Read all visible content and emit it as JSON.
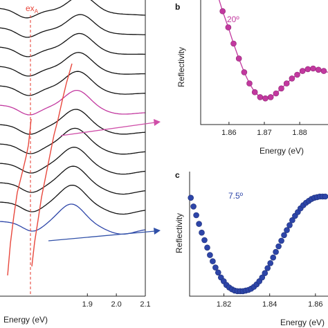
{
  "colors": {
    "black_curve": "#111111",
    "magenta": "#c2389f",
    "blue": "#2d45a8",
    "red": "#e8473c",
    "arrow_magenta": "#cf4ea8",
    "arrow_blue": "#3050a8"
  },
  "chart_data": [
    {
      "panel": "a",
      "type": "line",
      "xlabel": "Energy (eV)",
      "x_ticks": [
        "1.9",
        "2.0",
        "2.1"
      ],
      "xlim": [
        1.73,
        2.1
      ],
      "annotation": {
        "label": "ex",
        "subscript": "A",
        "x": 1.875
      },
      "series": [
        {
          "color": "black",
          "curve_index": 1
        },
        {
          "color": "black",
          "curve_index": 2
        },
        {
          "color": "black",
          "curve_index": 3
        },
        {
          "color": "black",
          "curve_index": 4
        },
        {
          "color": "black",
          "curve_index": 5
        },
        {
          "color": "magenta",
          "curve_index": 6
        },
        {
          "color": "black",
          "curve_index": 7
        },
        {
          "color": "black",
          "curve_index": 8
        },
        {
          "color": "black",
          "curve_index": 9
        },
        {
          "color": "black",
          "curve_index": 10
        },
        {
          "color": "black",
          "curve_index": 11
        },
        {
          "color": "blue",
          "curve_index": 12
        }
      ]
    },
    {
      "panel": "b",
      "type": "scatter",
      "title": "b",
      "angle_label": "20º",
      "xlabel": "Energy (eV)",
      "ylabel": "Reflectivity",
      "x_ticks": [
        "1.86",
        "1.87",
        "1.88"
      ],
      "xlim": [
        1.852,
        1.888
      ],
      "ylim": [
        0,
        1
      ],
      "points": [
        [
          1.8582,
          0.91
        ],
        [
          1.8598,
          0.78
        ],
        [
          1.8613,
          0.65
        ],
        [
          1.8628,
          0.53
        ],
        [
          1.8643,
          0.42
        ],
        [
          1.8658,
          0.33
        ],
        [
          1.8673,
          0.26
        ],
        [
          1.8688,
          0.22
        ],
        [
          1.8703,
          0.21
        ],
        [
          1.8718,
          0.22
        ],
        [
          1.8733,
          0.25
        ],
        [
          1.8748,
          0.29
        ],
        [
          1.8763,
          0.33
        ],
        [
          1.8778,
          0.37
        ],
        [
          1.8793,
          0.4
        ],
        [
          1.8808,
          0.43
        ],
        [
          1.8823,
          0.445
        ],
        [
          1.8838,
          0.45
        ],
        [
          1.8853,
          0.44
        ],
        [
          1.8868,
          0.43
        ]
      ],
      "fit_x": [
        1.857,
        1.8582,
        1.8598,
        1.8613,
        1.8628,
        1.8643,
        1.8658,
        1.8673,
        1.8688,
        1.8703,
        1.8718,
        1.8733,
        1.8748,
        1.8763,
        1.8778,
        1.8793,
        1.8808,
        1.8823,
        1.8838,
        1.8853,
        1.8868,
        1.888
      ],
      "fit_y": [
        1.02,
        0.91,
        0.78,
        0.65,
        0.53,
        0.42,
        0.33,
        0.26,
        0.22,
        0.21,
        0.22,
        0.25,
        0.29,
        0.33,
        0.37,
        0.4,
        0.43,
        0.445,
        0.45,
        0.44,
        0.43,
        0.42
      ]
    },
    {
      "panel": "c",
      "type": "scatter",
      "title": "c",
      "angle_label": "7.5º",
      "xlabel": "Energy (eV)",
      "ylabel": "Reflectivity",
      "x_ticks": [
        "1.82",
        "1.84",
        "1.86"
      ],
      "xlim": [
        1.805,
        1.8655
      ],
      "ylim": [
        0,
        1
      ],
      "points": [
        [
          1.8055,
          0.79
        ],
        [
          1.8067,
          0.72
        ],
        [
          1.8079,
          0.65
        ],
        [
          1.8091,
          0.58
        ],
        [
          1.8103,
          0.51
        ],
        [
          1.8115,
          0.45
        ],
        [
          1.8127,
          0.39
        ],
        [
          1.8139,
          0.33
        ],
        [
          1.8151,
          0.28
        ],
        [
          1.8163,
          0.23
        ],
        [
          1.8175,
          0.19
        ],
        [
          1.8187,
          0.15
        ],
        [
          1.8199,
          0.12
        ],
        [
          1.8211,
          0.09
        ],
        [
          1.8223,
          0.07
        ],
        [
          1.8235,
          0.055
        ],
        [
          1.8247,
          0.045
        ],
        [
          1.8259,
          0.04
        ],
        [
          1.8271,
          0.04
        ],
        [
          1.8283,
          0.04
        ],
        [
          1.8295,
          0.045
        ],
        [
          1.8307,
          0.05
        ],
        [
          1.8319,
          0.06
        ],
        [
          1.8331,
          0.075
        ],
        [
          1.8343,
          0.095
        ],
        [
          1.8355,
          0.12
        ],
        [
          1.8367,
          0.15
        ],
        [
          1.8379,
          0.185
        ],
        [
          1.8391,
          0.225
        ],
        [
          1.8403,
          0.265
        ],
        [
          1.8415,
          0.31
        ],
        [
          1.8427,
          0.355
        ],
        [
          1.8439,
          0.4
        ],
        [
          1.8451,
          0.445
        ],
        [
          1.8463,
          0.49
        ],
        [
          1.8475,
          0.53
        ],
        [
          1.8487,
          0.57
        ],
        [
          1.8499,
          0.61
        ],
        [
          1.8511,
          0.645
        ],
        [
          1.8523,
          0.675
        ],
        [
          1.8535,
          0.705
        ],
        [
          1.8547,
          0.73
        ],
        [
          1.8559,
          0.75
        ],
        [
          1.8571,
          0.765
        ],
        [
          1.8583,
          0.78
        ],
        [
          1.8595,
          0.79
        ],
        [
          1.8607,
          0.795
        ],
        [
          1.8619,
          0.8
        ],
        [
          1.8631,
          0.8
        ],
        [
          1.8643,
          0.8
        ]
      ]
    }
  ]
}
